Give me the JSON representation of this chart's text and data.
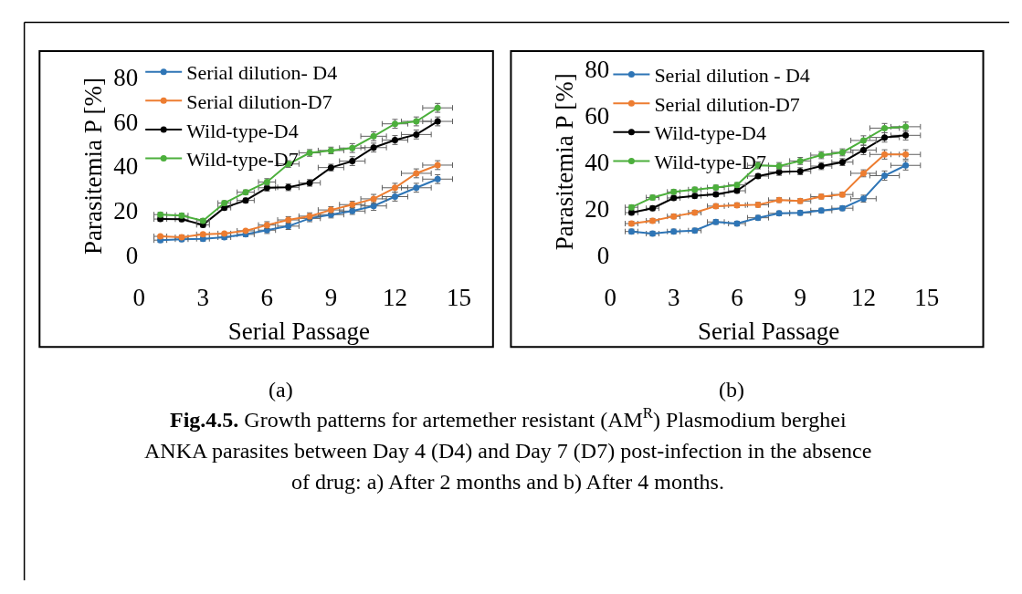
{
  "chart_data": [
    {
      "type": "line",
      "xlabel": "Serial Passage",
      "ylabel": "Parasitemia P [%]",
      "x": [
        1,
        2,
        3,
        4,
        5,
        6,
        7,
        8,
        9,
        10,
        11,
        12,
        13,
        14
      ],
      "xlim": [
        0,
        15
      ],
      "xticks": [
        0,
        3,
        6,
        9,
        12,
        15
      ],
      "ylim": [
        0,
        80
      ],
      "yticks": [
        0,
        20,
        40,
        60,
        80
      ],
      "grid": false,
      "legend": "top left",
      "marker": "circle",
      "line_style": "solid",
      "annotations": [
        "(a)",
        "Fig.4.5.",
        "Growth patterns for artemether resistant (AM$^{R}$) Plasmodium berghei ANKA parasites between Day 4 (D4) and Day 7 (D7) post-infection in the absence of drug: a) After 2 months and b) After 4 months."
      ],
      "series": [
        {
          "name": "Serial dilution- D4",
          "color": "#2e75b6",
          "values": [
            6.6,
            7.0,
            7.2,
            7.9,
            9.2,
            11.1,
            12.9,
            16.4,
            18.1,
            19.7,
            22.0,
            26.2,
            30.2,
            34.1
          ],
          "errors": [
            1,
            1,
            1,
            1,
            1,
            1.5,
            1.5,
            1.5,
            1.5,
            1.5,
            2,
            2,
            2,
            2
          ],
          "xerrors": [
            0.3,
            0.3,
            0.3,
            0.3,
            0.4,
            0.4,
            0.5,
            0.5,
            0.6,
            0.6,
            0.6,
            0.6,
            0.7,
            0.7
          ]
        },
        {
          "name": "Serial dilution-D7",
          "color": "#ed7d31",
          "values": [
            8.3,
            7.9,
            9.2,
            9.6,
            10.8,
            13.4,
            15.7,
            17.4,
            20.2,
            22.6,
            25.2,
            30.2,
            36.7,
            40.4
          ],
          "errors": [
            null,
            1,
            null,
            null,
            null,
            1.5,
            1.5,
            1.5,
            1.5,
            1.5,
            2,
            2,
            2,
            2
          ],
          "xerrors": [
            0.3,
            0.3,
            0.3,
            0.3,
            0.4,
            0.4,
            0.5,
            0.5,
            0.6,
            0.6,
            0.6,
            0.6,
            0.7,
            0.7
          ]
        },
        {
          "name": "Wild-type-D4",
          "color": "#000000",
          "values": [
            16.1,
            16.0,
            13.5,
            21.2,
            24.5,
            30.2,
            30.4,
            32.4,
            39.3,
            42.2,
            48.3,
            51.7,
            54.2,
            60.1
          ],
          "errors": [
            1,
            1,
            1,
            1,
            1,
            1.5,
            1.5,
            1.5,
            1.5,
            2,
            2,
            2,
            2,
            2
          ],
          "xerrors": [
            0.3,
            0.3,
            0.3,
            0.3,
            0.4,
            0.4,
            0.5,
            0.5,
            0.6,
            0.6,
            0.6,
            0.6,
            0.7,
            0.7
          ]
        },
        {
          "name": "Wild-type-D7",
          "color": "#4caf3c",
          "values": [
            18.1,
            17.7,
            15.3,
            23.3,
            28.2,
            32.8,
            40.9,
            45.9,
            47.0,
            48.1,
            53.4,
            59.0,
            60.1,
            66.2
          ],
          "errors": [
            1,
            1,
            1,
            1,
            1,
            1.5,
            1.5,
            1.5,
            1.5,
            2,
            2,
            2,
            2,
            2
          ],
          "xerrors": [
            0.3,
            0.3,
            0.3,
            0.3,
            0.4,
            0.4,
            0.5,
            0.5,
            0.6,
            0.6,
            0.6,
            0.6,
            0.7,
            0.7
          ]
        }
      ]
    },
    {
      "type": "line",
      "xlabel": "Serial Passage",
      "ylabel": "Parasitemia P [%]",
      "x": [
        1,
        2,
        3,
        4,
        5,
        6,
        7,
        8,
        9,
        10,
        11,
        12,
        13,
        14
      ],
      "xlim": [
        0,
        15
      ],
      "xticks": [
        0,
        3,
        6,
        9,
        12,
        15
      ],
      "ylim": [
        0,
        80
      ],
      "yticks": [
        0,
        20,
        40,
        60,
        80
      ],
      "grid": false,
      "legend": "top left",
      "marker": "circle",
      "line_style": "solid",
      "annotations": [
        "(b)"
      ],
      "series": [
        {
          "name": "Serial dilution - D4",
          "color": "#2e75b6",
          "values": [
            10.0,
            9.1,
            10.0,
            10.4,
            14.1,
            13.4,
            15.9,
            17.8,
            18.0,
            19.0,
            20.0,
            24.1,
            34.0,
            38.4
          ],
          "errors": [
            1,
            1,
            1,
            1,
            1,
            1,
            1,
            1,
            1,
            1,
            1,
            1.5,
            2,
            2
          ],
          "xerrors": [
            0.3,
            0.3,
            0.3,
            0.3,
            0.4,
            0.4,
            0.5,
            0.5,
            0.5,
            0.5,
            0.5,
            0.6,
            0.7,
            0.7
          ]
        },
        {
          "name": "Serial dilution-D7",
          "color": "#ed7d31",
          "values": [
            13.4,
            14.6,
            16.5,
            18.1,
            20.9,
            21.3,
            21.5,
            23.5,
            23.1,
            25.0,
            25.9,
            35.0,
            43.1,
            43.1
          ],
          "errors": [
            1,
            1,
            1,
            1,
            1,
            1,
            1,
            1,
            1,
            1,
            1,
            1.5,
            2,
            2
          ],
          "xerrors": [
            0.3,
            0.3,
            0.3,
            0.3,
            0.4,
            0.4,
            0.5,
            0.5,
            0.5,
            0.5,
            0.5,
            0.6,
            0.7,
            0.7
          ]
        },
        {
          "name": "Wild-type-D4",
          "color": "#000000",
          "values": [
            18.1,
            20.0,
            24.4,
            25.3,
            26.0,
            27.5,
            33.8,
            35.6,
            35.9,
            38.1,
            39.8,
            45.0,
            50.4,
            51.3
          ],
          "errors": [
            1,
            1,
            1,
            1,
            1,
            1,
            1,
            1.5,
            1.5,
            1.5,
            1.5,
            2,
            2,
            2
          ],
          "xerrors": [
            0.3,
            0.3,
            0.3,
            0.3,
            0.4,
            0.4,
            0.5,
            0.5,
            0.5,
            0.5,
            0.5,
            0.6,
            0.7,
            0.7
          ]
        },
        {
          "name": "Wild-type-D7",
          "color": "#4caf3c",
          "values": [
            20.4,
            24.6,
            27.0,
            28.0,
            28.9,
            30.0,
            38.4,
            38.1,
            40.3,
            42.8,
            44.0,
            49.1,
            54.4,
            55.0
          ],
          "errors": [
            1,
            1,
            1,
            1,
            1,
            1,
            1.5,
            1.5,
            1.5,
            1.5,
            1.5,
            2,
            2,
            2
          ],
          "xerrors": [
            0.3,
            0.3,
            0.3,
            0.3,
            0.4,
            0.4,
            0.5,
            0.5,
            0.5,
            0.5,
            0.5,
            0.6,
            0.7,
            0.7
          ]
        }
      ]
    }
  ]
}
